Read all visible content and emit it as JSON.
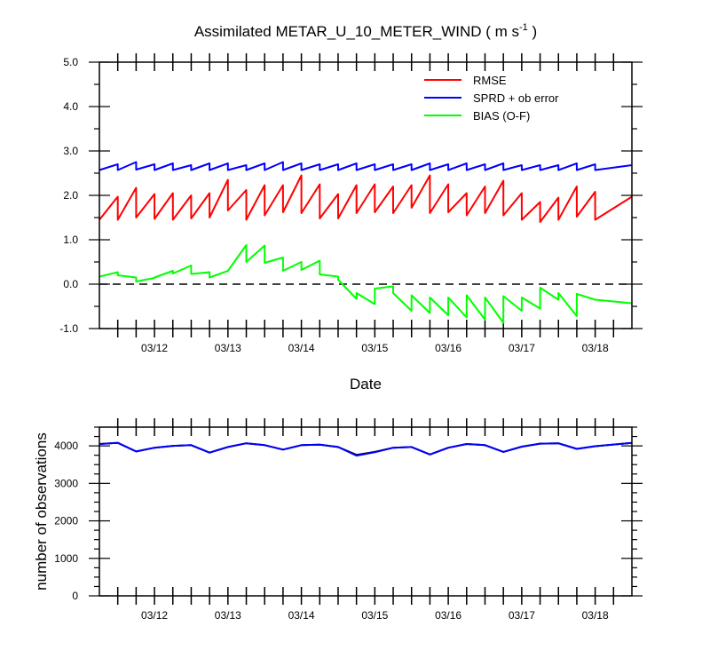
{
  "chart_data": [
    {
      "type": "line",
      "title": "Assimilated METAR_U_10_METER_WIND ( m s",
      "title_sup": "-1",
      "title_end": " )",
      "xlabel": "Date",
      "ylabel": "",
      "xlim": [
        0,
        7.25
      ],
      "ylim": [
        -1.0,
        5.0
      ],
      "x_tick_labels": [
        "03/12",
        "03/13",
        "03/14",
        "03/15",
        "03/16",
        "03/17",
        "03/18"
      ],
      "x_tick_values": [
        0.75,
        1.75,
        2.75,
        3.75,
        4.75,
        5.75,
        6.75
      ],
      "y_tick_labels": [
        "-1.0",
        "0.0",
        "1.0",
        "2.0",
        "3.0",
        "4.0",
        "5.0"
      ],
      "y_tick_values": [
        -1,
        0,
        1,
        2,
        3,
        4,
        5
      ],
      "legend_position": "top-right",
      "zero_line": "dashed",
      "colors": {
        "RMSE": "#ff0000",
        "SPRD + ob error": "#0000ff",
        "BIAS (O-F)": "#00ff00",
        "zero_line": "#000000"
      },
      "series": [
        {
          "name": "RMSE",
          "values": [
            [
              0,
              1.45
            ],
            [
              0.25,
              1.97
            ],
            [
              0.25,
              1.45
            ],
            [
              0.5,
              2.17
            ],
            [
              0.5,
              1.5
            ],
            [
              0.75,
              2.03
            ],
            [
              0.75,
              1.47
            ],
            [
              1.0,
              2.05
            ],
            [
              1.0,
              1.45
            ],
            [
              1.25,
              2.0
            ],
            [
              1.25,
              1.48
            ],
            [
              1.5,
              2.05
            ],
            [
              1.5,
              1.5
            ],
            [
              1.75,
              2.35
            ],
            [
              1.75,
              1.66
            ],
            [
              2.0,
              2.12
            ],
            [
              2.0,
              1.45
            ],
            [
              2.25,
              2.23
            ],
            [
              2.25,
              1.55
            ],
            [
              2.5,
              2.23
            ],
            [
              2.5,
              1.62
            ],
            [
              2.75,
              2.45
            ],
            [
              2.75,
              1.6
            ],
            [
              3.0,
              2.25
            ],
            [
              3.0,
              1.48
            ],
            [
              3.25,
              2.03
            ],
            [
              3.25,
              1.48
            ],
            [
              3.5,
              2.23
            ],
            [
              3.5,
              1.6
            ],
            [
              3.75,
              2.25
            ],
            [
              3.75,
              1.62
            ],
            [
              4.0,
              2.2
            ],
            [
              4.0,
              1.6
            ],
            [
              4.25,
              2.23
            ],
            [
              4.25,
              1.72
            ],
            [
              4.5,
              2.45
            ],
            [
              4.5,
              1.6
            ],
            [
              4.75,
              2.25
            ],
            [
              4.75,
              1.62
            ],
            [
              5.0,
              2.05
            ],
            [
              5.0,
              1.55
            ],
            [
              5.25,
              2.2
            ],
            [
              5.25,
              1.6
            ],
            [
              5.5,
              2.33
            ],
            [
              5.5,
              1.55
            ],
            [
              5.75,
              2.05
            ],
            [
              5.75,
              1.45
            ],
            [
              6.0,
              1.85
            ],
            [
              6.0,
              1.4
            ],
            [
              6.25,
              1.95
            ],
            [
              6.25,
              1.45
            ],
            [
              6.5,
              2.2
            ],
            [
              6.5,
              1.52
            ],
            [
              6.75,
              2.08
            ],
            [
              6.75,
              1.45
            ],
            [
              7.25,
              1.97
            ]
          ]
        },
        {
          "name": "SPRD + ob error",
          "values": [
            [
              0,
              2.57
            ],
            [
              0.25,
              2.7
            ],
            [
              0.25,
              2.57
            ],
            [
              0.5,
              2.75
            ],
            [
              0.5,
              2.58
            ],
            [
              0.75,
              2.7
            ],
            [
              0.75,
              2.57
            ],
            [
              1.0,
              2.72
            ],
            [
              1.0,
              2.57
            ],
            [
              1.25,
              2.68
            ],
            [
              1.25,
              2.57
            ],
            [
              1.5,
              2.72
            ],
            [
              1.5,
              2.57
            ],
            [
              1.75,
              2.72
            ],
            [
              1.75,
              2.57
            ],
            [
              2.0,
              2.68
            ],
            [
              2.0,
              2.57
            ],
            [
              2.25,
              2.72
            ],
            [
              2.25,
              2.57
            ],
            [
              2.5,
              2.75
            ],
            [
              2.5,
              2.57
            ],
            [
              2.75,
              2.72
            ],
            [
              2.75,
              2.57
            ],
            [
              3.0,
              2.7
            ],
            [
              3.0,
              2.57
            ],
            [
              3.25,
              2.7
            ],
            [
              3.25,
              2.57
            ],
            [
              3.5,
              2.72
            ],
            [
              3.5,
              2.57
            ],
            [
              3.75,
              2.7
            ],
            [
              3.75,
              2.57
            ],
            [
              4.0,
              2.7
            ],
            [
              4.0,
              2.57
            ],
            [
              4.25,
              2.7
            ],
            [
              4.25,
              2.57
            ],
            [
              4.5,
              2.72
            ],
            [
              4.5,
              2.57
            ],
            [
              4.75,
              2.7
            ],
            [
              4.75,
              2.57
            ],
            [
              5.0,
              2.72
            ],
            [
              5.0,
              2.57
            ],
            [
              5.25,
              2.7
            ],
            [
              5.25,
              2.57
            ],
            [
              5.5,
              2.72
            ],
            [
              5.5,
              2.57
            ],
            [
              5.75,
              2.68
            ],
            [
              5.75,
              2.57
            ],
            [
              6.0,
              2.68
            ],
            [
              6.0,
              2.57
            ],
            [
              6.25,
              2.68
            ],
            [
              6.25,
              2.57
            ],
            [
              6.5,
              2.72
            ],
            [
              6.5,
              2.57
            ],
            [
              6.75,
              2.7
            ],
            [
              6.75,
              2.57
            ],
            [
              7.25,
              2.68
            ]
          ]
        },
        {
          "name": "BIAS (O-F)",
          "values": [
            [
              0,
              0.17
            ],
            [
              0.25,
              0.27
            ],
            [
              0.25,
              0.2
            ],
            [
              0.5,
              0.15
            ],
            [
              0.5,
              0.06
            ],
            [
              0.75,
              0.14
            ],
            [
              0.75,
              0.15
            ],
            [
              1.0,
              0.3
            ],
            [
              1.0,
              0.24
            ],
            [
              1.25,
              0.42
            ],
            [
              1.25,
              0.23
            ],
            [
              1.5,
              0.27
            ],
            [
              1.5,
              0.15
            ],
            [
              1.75,
              0.3
            ],
            [
              1.75,
              0.3
            ],
            [
              2.0,
              0.88
            ],
            [
              2.0,
              0.5
            ],
            [
              2.25,
              0.87
            ],
            [
              2.25,
              0.48
            ],
            [
              2.5,
              0.6
            ],
            [
              2.5,
              0.3
            ],
            [
              2.75,
              0.5
            ],
            [
              2.75,
              0.32
            ],
            [
              3.0,
              0.53
            ],
            [
              3.0,
              0.22
            ],
            [
              3.25,
              0.17
            ],
            [
              3.25,
              0.1
            ],
            [
              3.5,
              -0.33
            ],
            [
              3.5,
              -0.2
            ],
            [
              3.75,
              -0.45
            ],
            [
              3.75,
              -0.1
            ],
            [
              4.0,
              -0.05
            ],
            [
              4.0,
              -0.2
            ],
            [
              4.25,
              -0.6
            ],
            [
              4.25,
              -0.25
            ],
            [
              4.5,
              -0.65
            ],
            [
              4.5,
              -0.3
            ],
            [
              4.75,
              -0.7
            ],
            [
              4.75,
              -0.3
            ],
            [
              5.0,
              -0.75
            ],
            [
              5.0,
              -0.25
            ],
            [
              5.25,
              -0.8
            ],
            [
              5.25,
              -0.3
            ],
            [
              5.5,
              -0.87
            ],
            [
              5.5,
              -0.27
            ],
            [
              5.75,
              -0.6
            ],
            [
              5.75,
              -0.3
            ],
            [
              6.0,
              -0.55
            ],
            [
              6.0,
              -0.08
            ],
            [
              6.25,
              -0.35
            ],
            [
              6.25,
              -0.2
            ],
            [
              6.5,
              -0.72
            ],
            [
              6.5,
              -0.22
            ],
            [
              6.75,
              -0.35
            ],
            [
              7.25,
              -0.43
            ]
          ]
        }
      ]
    },
    {
      "type": "line",
      "title": "",
      "xlabel": "",
      "ylabel": "number of observations",
      "xlim": [
        0,
        7.25
      ],
      "ylim": [
        0,
        4500
      ],
      "x_tick_labels": [
        "03/12",
        "03/13",
        "03/14",
        "03/15",
        "03/16",
        "03/17",
        "03/18"
      ],
      "x_tick_values": [
        0.75,
        1.75,
        2.75,
        3.75,
        4.75,
        5.75,
        6.75
      ],
      "y_tick_labels": [
        "0",
        "1000",
        "2000",
        "3000",
        "4000"
      ],
      "y_tick_values": [
        0,
        1000,
        2000,
        3000,
        4000
      ],
      "colors": {
        "possible": "#000000",
        "used": "#0000ff"
      },
      "series": [
        {
          "values": [
            [
              0,
              4050
            ],
            [
              0.25,
              4080
            ],
            [
              0.5,
              3850
            ],
            [
              0.75,
              3950
            ],
            [
              1.0,
              4000
            ],
            [
              1.25,
              4020
            ],
            [
              1.5,
              3820
            ],
            [
              1.75,
              3970
            ],
            [
              2.0,
              4070
            ],
            [
              2.25,
              4020
            ],
            [
              2.5,
              3900
            ],
            [
              2.75,
              4020
            ],
            [
              3.0,
              4030
            ],
            [
              3.25,
              3970
            ],
            [
              3.5,
              3760
            ],
            [
              3.75,
              3840
            ],
            [
              4.0,
              3950
            ],
            [
              4.25,
              3970
            ],
            [
              4.5,
              3770
            ],
            [
              4.75,
              3950
            ],
            [
              5.0,
              4050
            ],
            [
              5.25,
              4020
            ],
            [
              5.5,
              3840
            ],
            [
              5.75,
              3980
            ],
            [
              6.0,
              4060
            ],
            [
              6.25,
              4070
            ],
            [
              6.5,
              3920
            ],
            [
              6.75,
              3990
            ],
            [
              7.25,
              4080
            ]
          ]
        },
        {
          "values": [
            [
              0,
              4050
            ],
            [
              0.25,
              4080
            ],
            [
              0.5,
              3850
            ],
            [
              0.75,
              3950
            ],
            [
              1.0,
              4000
            ],
            [
              1.25,
              4020
            ],
            [
              1.5,
              3820
            ],
            [
              1.75,
              3970
            ],
            [
              2.0,
              4070
            ],
            [
              2.25,
              4020
            ],
            [
              2.5,
              3900
            ],
            [
              2.75,
              4020
            ],
            [
              3.0,
              4030
            ],
            [
              3.25,
              3970
            ],
            [
              3.5,
              3740
            ],
            [
              3.75,
              3830
            ],
            [
              4.0,
              3950
            ],
            [
              4.25,
              3970
            ],
            [
              4.5,
              3770
            ],
            [
              4.75,
              3950
            ],
            [
              5.0,
              4050
            ],
            [
              5.25,
              4020
            ],
            [
              5.5,
              3840
            ],
            [
              5.75,
              3980
            ],
            [
              6.0,
              4060
            ],
            [
              6.25,
              4070
            ],
            [
              6.5,
              3920
            ],
            [
              6.75,
              3990
            ],
            [
              7.25,
              4080
            ]
          ]
        }
      ]
    }
  ]
}
